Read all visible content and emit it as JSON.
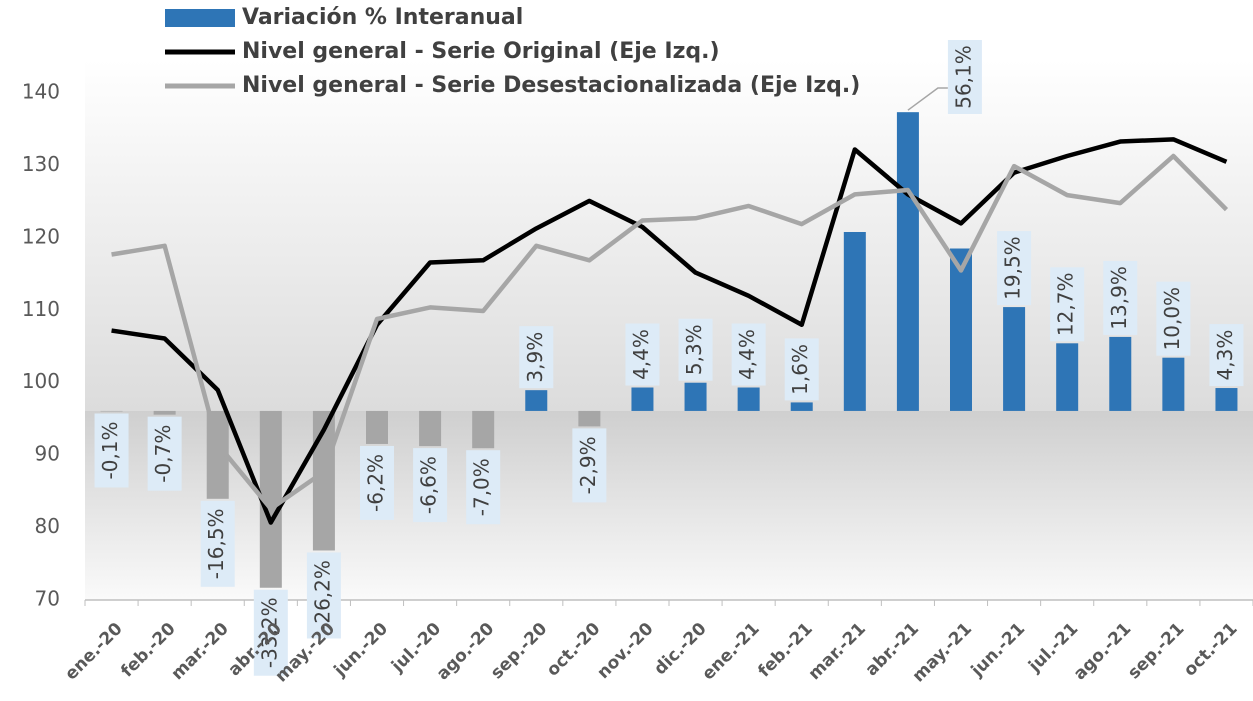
{
  "chart_data": {
    "type": "bar_line",
    "categories": [
      "ene.-20",
      "feb.-20",
      "mar.-20",
      "abr.-20",
      "may.-20",
      "jun.-20",
      "jul.-20",
      "ago.-20",
      "sep.-20",
      "oct.-20",
      "nov.-20",
      "dic.-20",
      "ene.-21",
      "feb.-21",
      "mar.-21",
      "abr.-21",
      "may.-21",
      "jun.-21",
      "jul.-21",
      "ago.-21",
      "sep.-21",
      "oct.-21"
    ],
    "series": [
      {
        "name": "Variación % Interanual",
        "type": "bar",
        "axis": "y2",
        "color": "#2e75b6",
        "negative_color": "#a6a6a6",
        "values": [
          -0.1,
          -0.7,
          -16.5,
          -33.2,
          -26.2,
          -6.2,
          -6.6,
          -7.0,
          3.9,
          -2.9,
          4.4,
          5.3,
          4.4,
          1.6,
          33.6,
          56.1,
          30.5,
          19.5,
          12.7,
          13.9,
          10.0,
          4.3
        ],
        "value_labels": [
          "-0,1%",
          "-0,7%",
          "-16,5%",
          "-33,2%",
          "-26,2%",
          "-6,2%",
          "-6,6%",
          "-7,0%",
          "3,9%",
          "-2,9%",
          "4,4%",
          "5,3%",
          "4,4%",
          "1,6%",
          null,
          "56,1%",
          null,
          "19,5%",
          "12,7%",
          "13,9%",
          "10,0%",
          "4,3%"
        ]
      },
      {
        "name": "Nivel general - Serie Original (Eje Izq.)",
        "type": "line",
        "color": "#000000",
        "values": [
          107.2,
          106.1,
          99.0,
          80.7,
          93.5,
          108.0,
          116.6,
          116.9,
          121.3,
          125.1,
          121.5,
          115.2,
          112.0,
          108.0,
          132.2,
          126.0,
          122.0,
          129.0,
          131.3,
          133.3,
          133.6,
          130.5
        ]
      },
      {
        "name": "Nivel general - Serie Desestacionalizada (Eje Izq.)",
        "type": "line",
        "color": "#a6a6a6",
        "values": [
          117.7,
          118.9,
          91.5,
          82.6,
          87.7,
          108.8,
          110.4,
          109.9,
          118.9,
          116.9,
          122.4,
          122.7,
          124.4,
          121.9,
          126.0,
          126.6,
          115.5,
          129.9,
          125.9,
          124.8,
          131.3,
          123.9
        ]
      }
    ],
    "ylim": [
      70,
      140
    ],
    "yticks": [
      70,
      80,
      90,
      100,
      110,
      120,
      130,
      140
    ],
    "y2lim": [
      -35.5,
      59.7
    ]
  }
}
